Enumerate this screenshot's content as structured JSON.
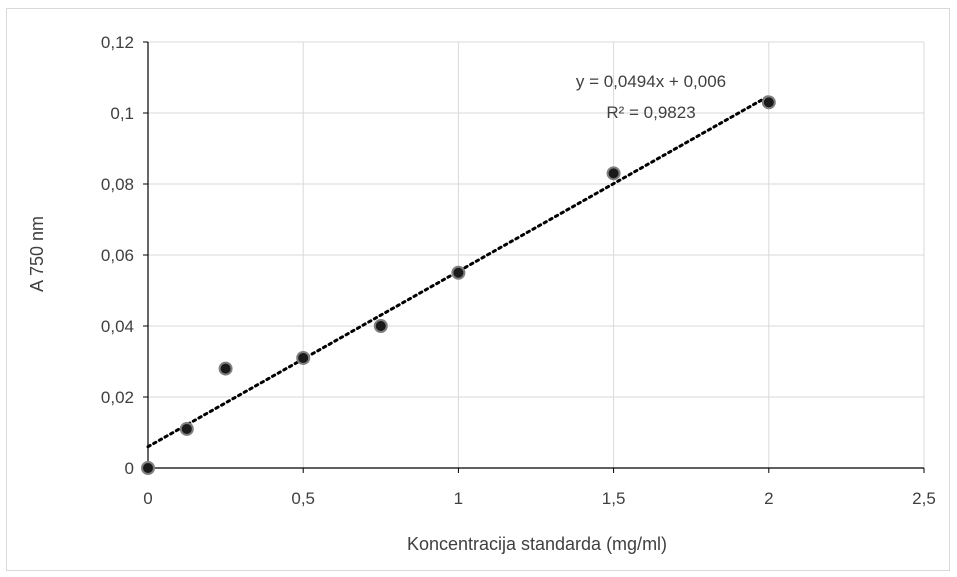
{
  "chart_data": {
    "type": "scatter",
    "title": "",
    "xlabel": "Koncentracija standarda (mg/ml)",
    "ylabel": "A 750 nm",
    "xlim": [
      0,
      2.5
    ],
    "ylim": [
      0,
      0.12
    ],
    "xticks": [
      "0",
      "0,5",
      "1",
      "1,5",
      "2",
      "2,5"
    ],
    "yticks": [
      "0",
      "0,02",
      "0,04",
      "0,06",
      "0,08",
      "0,1",
      "0,12"
    ],
    "grid": true,
    "legend": "none",
    "series": [
      {
        "x": [
          0,
          0.125,
          0.25,
          0.5,
          0.75,
          1,
          1.5,
          2
        ],
        "y": [
          0,
          0.011,
          0.028,
          0.031,
          0.04,
          0.055,
          0.083,
          0.103
        ],
        "marker_color": "#1a1a1a"
      }
    ],
    "trendline": {
      "type": "linear",
      "slope": 0.0494,
      "intercept": 0.006,
      "style": "dotted",
      "color": "#000000",
      "equation_label": "y = 0,0494x + 0,006",
      "r2_label": "R² = 0,9823"
    }
  }
}
